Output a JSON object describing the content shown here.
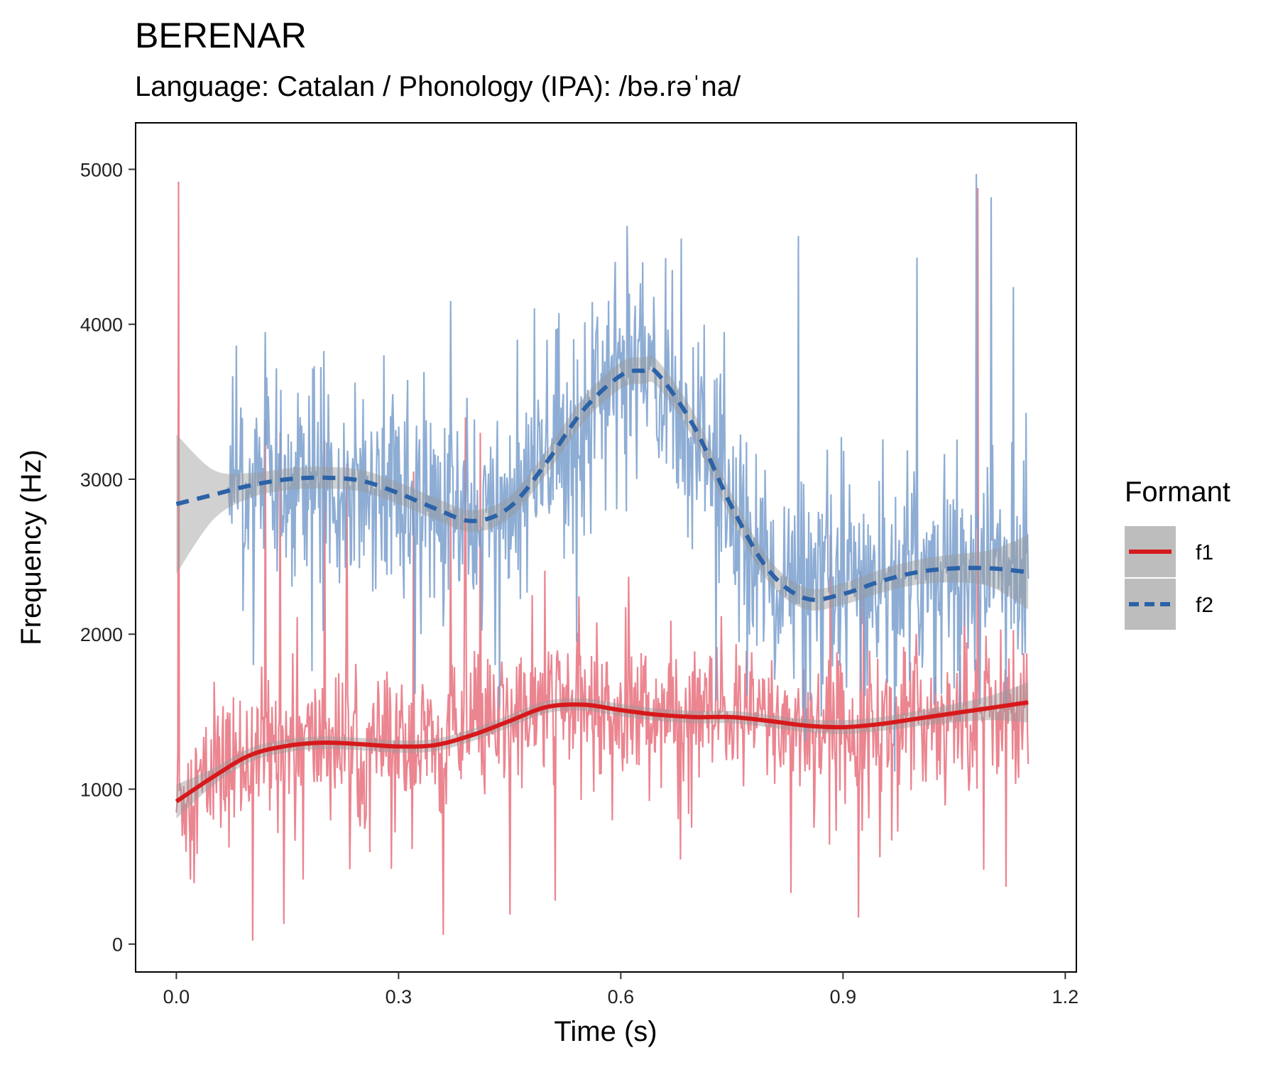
{
  "chart_data": {
    "type": "line",
    "title": "BERENAR",
    "subtitle": "Language: Catalan / Phonology (IPA): /bə.rəˈna/",
    "xlabel": "Time (s)",
    "ylabel": "Frequency (Hz)",
    "xlim": [
      -0.055,
      1.215
    ],
    "ylim": [
      -180,
      5300
    ],
    "xticks": [
      0.0,
      0.3,
      0.6,
      0.9,
      1.2
    ],
    "xtick_labels": [
      "0.0",
      "0.3",
      "0.6",
      "0.9",
      "1.2"
    ],
    "yticks": [
      0,
      1000,
      2000,
      3000,
      4000,
      5000
    ],
    "ytick_labels": [
      "0",
      "1000",
      "2000",
      "3000",
      "4000",
      "5000"
    ],
    "grid": false,
    "legend": {
      "title": "Formant",
      "position": "right",
      "items": [
        {
          "label": "f1",
          "color": "#d7191c",
          "linestyle": "solid"
        },
        {
          "label": "f2",
          "color": "#2b62a8",
          "linestyle": "dashed"
        }
      ]
    },
    "raw_series": [
      {
        "name": "f1",
        "color": "#e8707d",
        "sample_count": 1150,
        "x_range": [
          0.0,
          1.15
        ],
        "baseline": [
          [
            0.0,
            920
          ],
          [
            0.05,
            1080
          ],
          [
            0.1,
            1230
          ],
          [
            0.15,
            1290
          ],
          [
            0.2,
            1300
          ],
          [
            0.25,
            1290
          ],
          [
            0.3,
            1275
          ],
          [
            0.35,
            1285
          ],
          [
            0.4,
            1350
          ],
          [
            0.45,
            1450
          ],
          [
            0.5,
            1530
          ],
          [
            0.55,
            1540
          ],
          [
            0.6,
            1510
          ],
          [
            0.65,
            1480
          ],
          [
            0.7,
            1465
          ],
          [
            0.75,
            1460
          ],
          [
            0.8,
            1440
          ],
          [
            0.85,
            1410
          ],
          [
            0.9,
            1400
          ],
          [
            0.95,
            1420
          ],
          [
            1.0,
            1460
          ],
          [
            1.05,
            1490
          ],
          [
            1.1,
            1530
          ],
          [
            1.15,
            1560
          ]
        ],
        "spikes": [
          [
            0.003,
            4920
          ],
          [
            0.12,
            3380
          ],
          [
            0.14,
            3300
          ],
          [
            0.2,
            3250
          ],
          [
            0.23,
            3100
          ],
          [
            0.32,
            3050
          ],
          [
            0.37,
            2800
          ],
          [
            0.39,
            3400
          ],
          [
            0.41,
            3300
          ],
          [
            0.45,
            1540
          ],
          [
            1.082,
            4880
          ]
        ],
        "dips": [
          [
            0.145,
            130
          ],
          [
            0.36,
            60
          ],
          [
            0.45,
            190
          ],
          [
            0.83,
            330
          ],
          [
            0.95,
            560
          ],
          [
            1.09,
            480
          ],
          [
            1.12,
            370
          ]
        ]
      },
      {
        "name": "f2",
        "color": "#7a9fcd",
        "sample_count": 1080,
        "x_range": [
          0.07,
          1.15
        ],
        "baseline": [
          [
            0.07,
            2900
          ],
          [
            0.1,
            2960
          ],
          [
            0.15,
            3000
          ],
          [
            0.2,
            3010
          ],
          [
            0.25,
            2980
          ],
          [
            0.3,
            2900
          ],
          [
            0.35,
            2800
          ],
          [
            0.4,
            2720
          ],
          [
            0.45,
            2800
          ],
          [
            0.5,
            3100
          ],
          [
            0.55,
            3450
          ],
          [
            0.6,
            3680
          ],
          [
            0.65,
            3650
          ],
          [
            0.7,
            3300
          ],
          [
            0.75,
            2800
          ],
          [
            0.8,
            2400
          ],
          [
            0.85,
            2230
          ],
          [
            0.9,
            2260
          ],
          [
            0.95,
            2330
          ],
          [
            1.0,
            2400
          ],
          [
            1.05,
            2430
          ],
          [
            1.1,
            2430
          ],
          [
            1.15,
            2400
          ]
        ],
        "spikes": [
          [
            0.12,
            3950
          ],
          [
            0.28,
            3800
          ],
          [
            0.37,
            4150
          ],
          [
            0.46,
            3900
          ],
          [
            0.5,
            3900
          ],
          [
            0.63,
            4400
          ],
          [
            0.67,
            4350
          ],
          [
            0.74,
            3950
          ],
          [
            0.84,
            4570
          ],
          [
            1.0,
            4430
          ],
          [
            1.08,
            4970
          ],
          [
            1.1,
            4820
          ],
          [
            1.13,
            4240
          ]
        ],
        "dips": [
          [
            0.09,
            2150
          ],
          [
            0.33,
            2000
          ],
          [
            0.36,
            2050
          ],
          [
            0.43,
            1800
          ],
          [
            0.54,
            1950
          ],
          [
            0.76,
            1950
          ],
          [
            0.93,
            1600
          ],
          [
            0.99,
            1700
          ],
          [
            1.05,
            1650
          ],
          [
            1.12,
            1550
          ]
        ]
      }
    ],
    "series": [
      {
        "name": "f1",
        "color": "#d7191c",
        "linestyle": "solid",
        "x": [
          0.0,
          0.05,
          0.1,
          0.15,
          0.2,
          0.25,
          0.3,
          0.35,
          0.4,
          0.45,
          0.5,
          0.55,
          0.6,
          0.65,
          0.7,
          0.75,
          0.8,
          0.85,
          0.9,
          0.95,
          1.0,
          1.05,
          1.1,
          1.15
        ],
        "y": [
          920,
          1080,
          1220,
          1280,
          1300,
          1290,
          1275,
          1285,
          1350,
          1440,
          1530,
          1545,
          1510,
          1480,
          1465,
          1465,
          1440,
          1410,
          1400,
          1420,
          1455,
          1490,
          1525,
          1560
        ],
        "ci_halfwidth": [
          110,
          55,
          45,
          42,
          40,
          40,
          40,
          40,
          40,
          40,
          40,
          40,
          40,
          40,
          40,
          40,
          40,
          42,
          45,
          45,
          50,
          60,
          80,
          130
        ]
      },
      {
        "name": "f2",
        "color": "#2b62a8",
        "linestyle": "dashed",
        "x": [
          0.0,
          0.05,
          0.1,
          0.15,
          0.2,
          0.25,
          0.3,
          0.35,
          0.4,
          0.45,
          0.5,
          0.55,
          0.6,
          0.63,
          0.65,
          0.7,
          0.75,
          0.8,
          0.85,
          0.9,
          0.95,
          1.0,
          1.05,
          1.1,
          1.15
        ],
        "y": [
          2840,
          2900,
          2960,
          3000,
          3010,
          2990,
          2910,
          2810,
          2730,
          2820,
          3110,
          3450,
          3670,
          3700,
          3680,
          3330,
          2820,
          2410,
          2230,
          2260,
          2340,
          2400,
          2425,
          2425,
          2400
        ],
        "ci_halfwidth": [
          450,
          160,
          80,
          70,
          70,
          70,
          70,
          70,
          70,
          70,
          75,
          80,
          85,
          85,
          85,
          85,
          80,
          75,
          70,
          70,
          75,
          80,
          90,
          120,
          240
        ]
      }
    ]
  }
}
